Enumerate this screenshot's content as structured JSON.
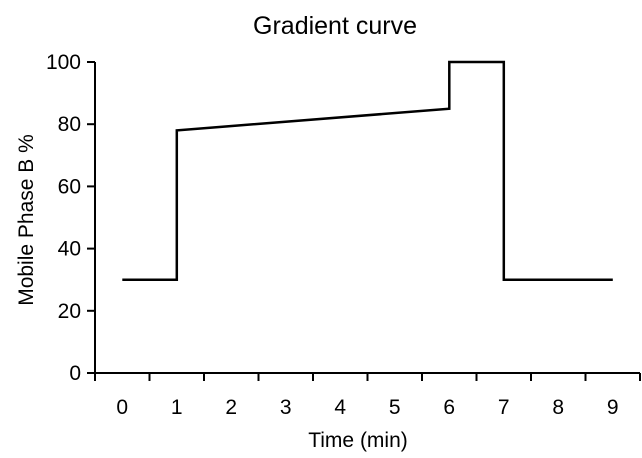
{
  "chart_data": {
    "type": "line",
    "title": "Gradient curve",
    "xlabel": "Time (min)",
    "ylabel": "Mobile Phase B %",
    "xlim": [
      -0.5,
      9.5
    ],
    "ylim": [
      0,
      100
    ],
    "xticks": [
      0,
      1,
      2,
      3,
      4,
      5,
      6,
      7,
      8,
      9
    ],
    "yticks": [
      0,
      20,
      40,
      60,
      80,
      100
    ],
    "grid": false,
    "legend": "none",
    "line_color": "#000000",
    "series": [
      {
        "x": [
          0,
          1,
          1,
          6,
          6,
          7,
          7,
          9
        ],
        "y": [
          30,
          30,
          78,
          85,
          100,
          100,
          30,
          30
        ]
      }
    ]
  }
}
